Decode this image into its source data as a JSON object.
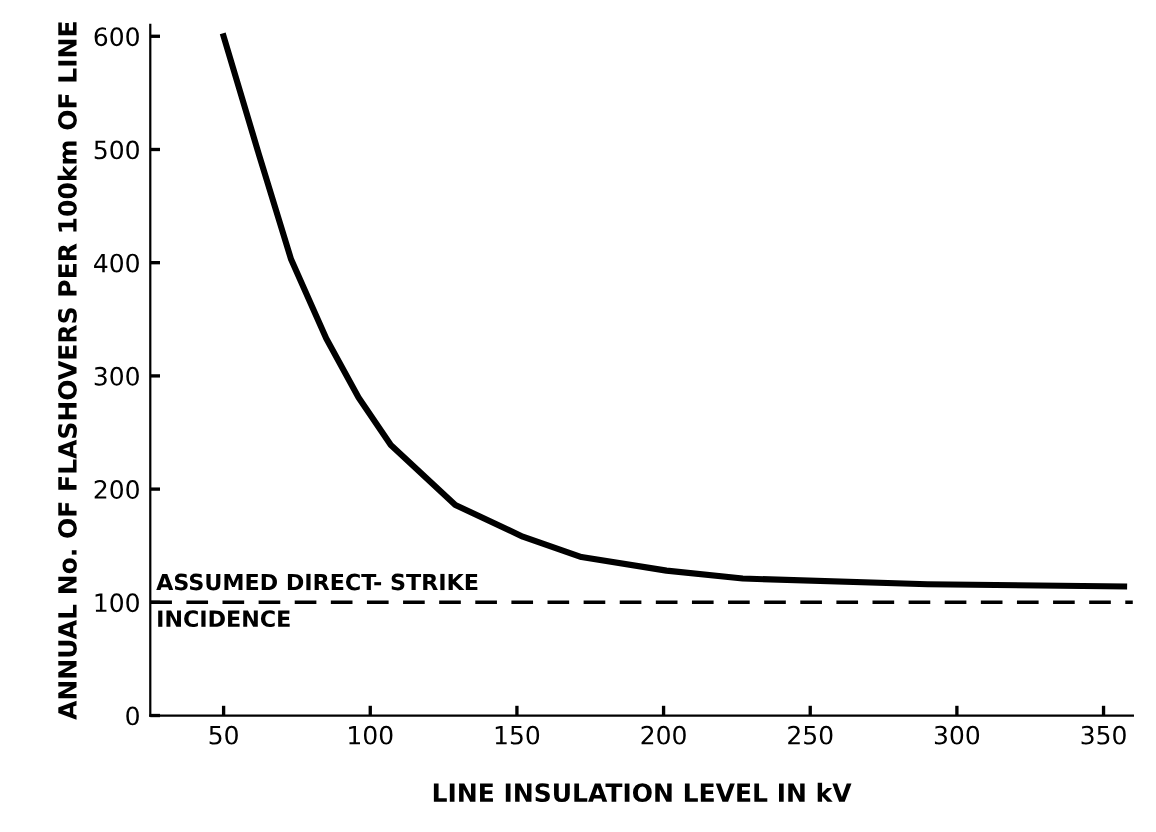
{
  "chart_data": {
    "type": "line",
    "xlabel": "LINE INSULATION LEVEL IN kV",
    "ylabel": "ANNUAL No. OF FLASHOVERS PER 100km OF LINE",
    "series": [
      {
        "color": "#000000",
        "x": [
          50,
          62,
          73,
          85,
          96,
          107,
          129,
          152,
          172,
          201,
          227,
          290,
          357
        ],
        "values": [
          600,
          496,
          403,
          333,
          281,
          239,
          186,
          158,
          140,
          128,
          121,
          116,
          114
        ]
      }
    ],
    "ref_lines": [
      {
        "axis": "y",
        "value": 100,
        "label": "ASSUMED DIRECT- STRIKE\nINCIDENCE",
        "color": "#000000",
        "line_style": "dashed"
      }
    ],
    "xlim": [
      25,
      360
    ],
    "xticks": [
      50,
      100,
      150,
      200,
      250,
      300,
      350
    ],
    "ylim": [
      0,
      610
    ],
    "yticks": [
      0,
      100,
      200,
      300,
      400,
      500,
      600
    ],
    "grid": false,
    "legend": false,
    "marker": "none",
    "line_style": "solid"
  }
}
